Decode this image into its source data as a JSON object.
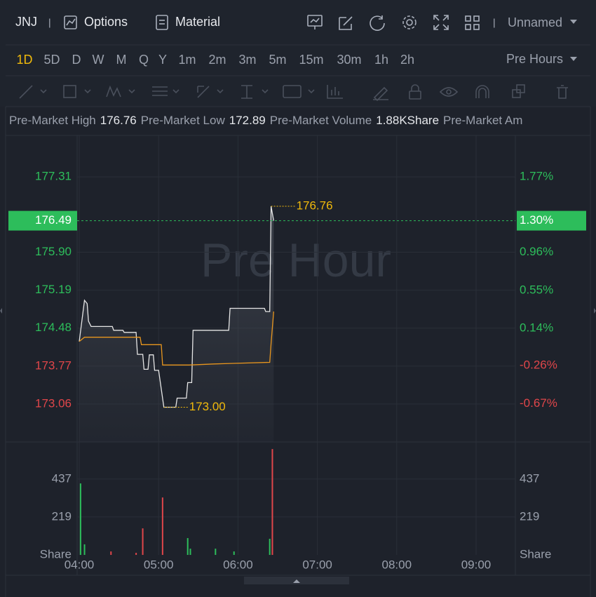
{
  "toolbar": {
    "symbol": "JNJ",
    "buttons": [
      "Options",
      "Material"
    ],
    "layout_name": "Unnamed"
  },
  "timeframes": [
    "1D",
    "5D",
    "D",
    "W",
    "M",
    "Q",
    "Y",
    "1m",
    "2m",
    "3m",
    "5m",
    "15m",
    "30m",
    "1h",
    "2h"
  ],
  "session": "Pre Hours",
  "stats": [
    {
      "label": "Pre-Market High",
      "value": "176.76"
    },
    {
      "label": "Pre-Market Low",
      "value": "172.89"
    },
    {
      "label": "Pre-Market Volume",
      "value": "1.88KShare"
    },
    {
      "label": "Pre-Market Am"
    }
  ],
  "chart_data": [
    {
      "type": "line",
      "watermark": "Pre Hour",
      "xlim": [
        "04:00",
        "09:30"
      ],
      "xticks": [
        "04:00",
        "05:00",
        "06:00",
        "07:00",
        "08:00",
        "09:00"
      ],
      "ylim": [
        172.35,
        178.06
      ],
      "yticks": [
        177.31,
        {
          "value": 175.9,
          "label": "175.90"
        },
        175.19,
        174.48,
        173.77,
        173.06
      ],
      "y2lim": [
        -1.08,
        2.2
      ],
      "y2ticks": [
        {
          "value": 1.77,
          "label": "1.77%"
        },
        {
          "value": 0.96,
          "label": "0.96%"
        },
        {
          "value": 0.55,
          "label": "0.55%"
        },
        {
          "value": 0.14,
          "label": "0.14%"
        },
        {
          "value": -0.26,
          "label": "-0.26%"
        },
        {
          "value": -0.67,
          "label": "-0.67%"
        }
      ],
      "grid": true,
      "up_color": "#2dbd5b",
      "down_color": "#e0464a",
      "series": [
        {
          "color": "#e6e6e6",
          "area": true,
          "x": [
            "04:00",
            "04:04",
            "04:06",
            "04:07",
            "04:09",
            "04:25",
            "04:26",
            "04:33",
            "04:34",
            "04:43",
            "04:44",
            "04:48",
            "04:49",
            "04:52",
            "04:53",
            "04:56",
            "04:57",
            "05:00",
            "05:04",
            "05:13",
            "05:14",
            "05:21",
            "05:22",
            "05:25",
            "05:26",
            "05:53",
            "05:54",
            "06:20",
            "06:21",
            "06:24",
            "06:25",
            "06:27"
          ],
          "values": [
            174.23,
            175.0,
            174.94,
            174.61,
            174.51,
            174.51,
            174.44,
            174.44,
            174.4,
            174.4,
            173.99,
            173.99,
            173.71,
            173.71,
            173.98,
            173.98,
            173.69,
            173.69,
            173.0,
            173.0,
            173.17,
            173.17,
            173.46,
            173.46,
            174.44,
            174.44,
            174.85,
            174.85,
            174.79,
            174.79,
            176.76,
            176.49
          ]
        },
        {
          "color": "#e8961e",
          "area": false,
          "x": [
            "04:00",
            "04:04",
            "04:46",
            "04:47",
            "05:02",
            "05:03",
            "05:23",
            "05:42",
            "05:56",
            "06:24",
            "06:25",
            "06:27"
          ],
          "values": [
            174.23,
            174.31,
            174.31,
            174.17,
            174.17,
            173.79,
            173.79,
            173.81,
            173.82,
            173.84,
            174.19,
            174.79
          ]
        }
      ],
      "annotations": [
        {
          "x": "06:25",
          "value": 176.76,
          "color": "#f0b90b"
        },
        {
          "x": "05:04",
          "value": 173,
          "label": "173.00",
          "color": "#f0b90b"
        }
      ],
      "last_price": {
        "value": 176.49,
        "change": {
          "value": 1.3,
          "label": "1.30%"
        },
        "color": "#2dbd5b"
      }
    },
    {
      "type": "bar",
      "xlim": [
        "04:00",
        "09:30"
      ],
      "ylim": [
        0,
        651
      ],
      "yticks": [
        {
          "value": 0,
          "label": "Share"
        },
        219,
        437
      ],
      "grid": true,
      "series": [
        {
          "x": [
            "04:01",
            "04:04",
            "04:24",
            "04:43",
            "04:48",
            "05:03",
            "05:22",
            "05:24",
            "05:43",
            "05:57",
            "06:24",
            "06:26"
          ],
          "values": [
            412,
            61,
            20,
            12,
            153,
            331,
            97,
            36,
            36,
            20,
            93,
            610
          ],
          "colors": [
            "#2dbd5b",
            "#2dbd5b",
            "#e0464a",
            "#e0464a",
            "#e0464a",
            "#e0464a",
            "#2dbd5b",
            "#2dbd5b",
            "#2dbd5b",
            "#2dbd5b",
            "#2dbd5b",
            "#e0464a"
          ]
        }
      ]
    }
  ]
}
